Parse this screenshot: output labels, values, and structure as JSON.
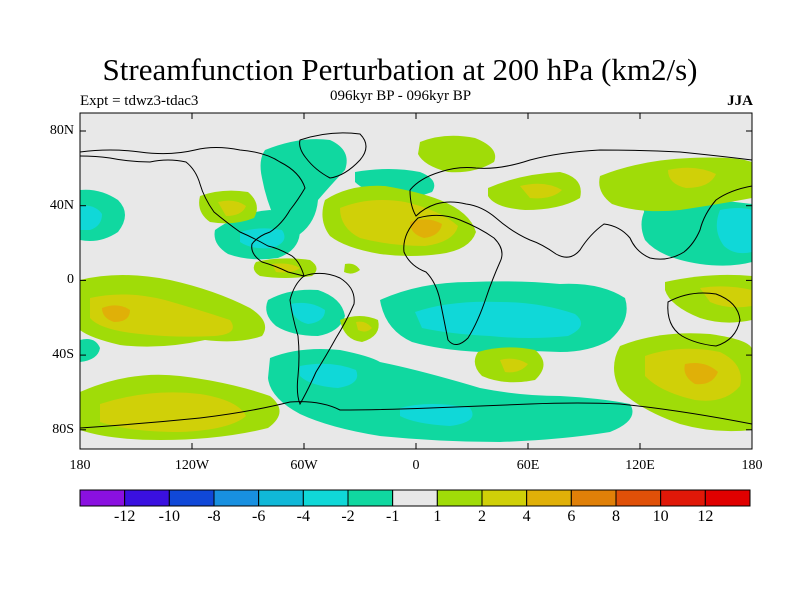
{
  "title": "Streamfunction Perturbation at 200 hPa (km2/s)",
  "experiment": "Expt = tdwz3-tdac3",
  "period": "096kyr BP - 096kyr BP",
  "season": "JJA",
  "lat_ticks": [
    "80N",
    "40N",
    "0",
    "40S",
    "80S"
  ],
  "lon_ticks": [
    "180",
    "120W",
    "60W",
    "0",
    "60E",
    "120E",
    "180"
  ],
  "colorbar": {
    "labels": [
      "-12",
      "-10",
      "-8",
      "-6",
      "-4",
      "-2",
      "-1",
      "1",
      "2",
      "4",
      "6",
      "8",
      "10",
      "12"
    ],
    "colors": [
      "#8a10e0",
      "#3a10e0",
      "#1048d8",
      "#1890e0",
      "#10b8d8",
      "#10d8d8",
      "#10d8a0",
      "#e8e8e8",
      "#a0dc08",
      "#d0d008",
      "#e0b008",
      "#e08008",
      "#e05008",
      "#e01808",
      "#e00000"
    ]
  },
  "map_colors": {
    "background": "#e8e8e8",
    "neg_1": "#10d8a0",
    "neg_2": "#10d8d8",
    "neg_3": "#10b8d8",
    "pos_1": "#a0dc08",
    "pos_2": "#d0d008",
    "pos_3": "#e0b008"
  }
}
